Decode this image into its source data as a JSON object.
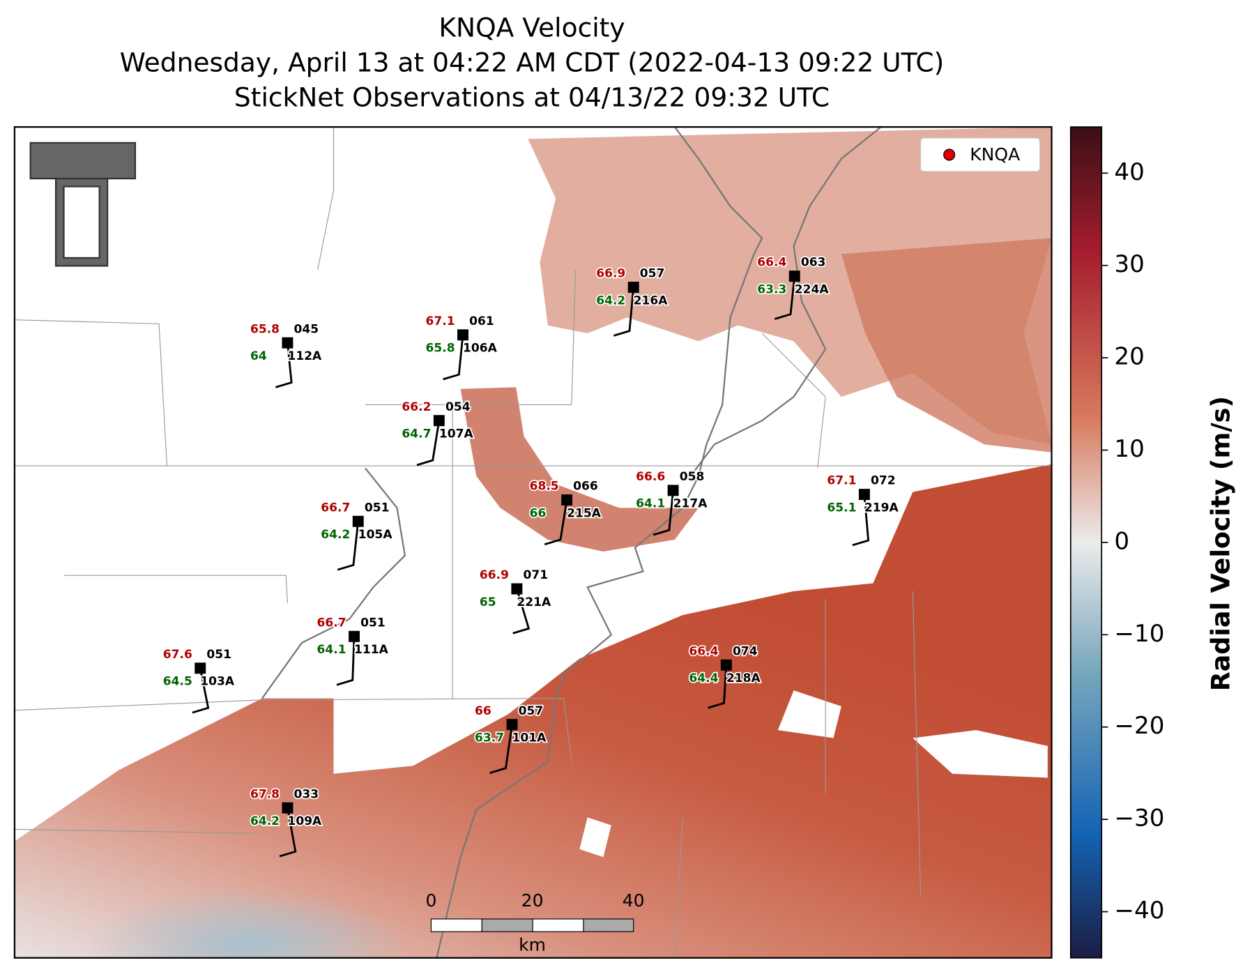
{
  "title": [
    "KNQA Velocity",
    "Wednesday, April 13 at 04:22 AM CDT (2022-04-13 09:22 UTC)",
    "StickNet Observations at 04/13/22 09:32 UTC"
  ],
  "legend": "KNQA",
  "stations": [
    {
      "id": "112A",
      "temperature": 65.8,
      "dewpoint": 64.0,
      "code": "045"
    },
    {
      "id": "106A",
      "temperature": 67.1,
      "dewpoint": 65.8,
      "code": "061"
    },
    {
      "id": "216A",
      "temperature": 66.9,
      "dewpoint": 64.2,
      "code": "057"
    },
    {
      "id": "224A",
      "temperature": 66.4,
      "dewpoint": 63.3,
      "code": "063"
    },
    {
      "id": "107A",
      "temperature": 66.2,
      "dewpoint": 64.7,
      "code": "054"
    },
    {
      "id": "215A",
      "temperature": 68.5,
      "dewpoint": 66.0,
      "code": "066"
    },
    {
      "id": "217A",
      "temperature": 66.6,
      "dewpoint": 64.1,
      "code": "058"
    },
    {
      "id": "219A",
      "temperature": 67.1,
      "dewpoint": 65.1,
      "code": "072"
    },
    {
      "id": "105A",
      "temperature": 66.7,
      "dewpoint": 64.2,
      "code": "051"
    },
    {
      "id": "221A",
      "temperature": 66.9,
      "dewpoint": 65.0,
      "code": "071"
    },
    {
      "id": "111A",
      "temperature": 66.7,
      "dewpoint": 64.1,
      "code": "051"
    },
    {
      "id": "103A",
      "temperature": 67.6,
      "dewpoint": 64.5,
      "code": "051"
    },
    {
      "id": "218A",
      "temperature": 66.4,
      "dewpoint": 64.4,
      "code": "074"
    },
    {
      "id": "101A",
      "temperature": 66.0,
      "dewpoint": 63.7,
      "code": "057"
    },
    {
      "id": "109A",
      "temperature": 67.8,
      "dewpoint": 64.2,
      "code": "033"
    }
  ],
  "scale_bar": {
    "ticks": [
      0,
      20,
      40
    ],
    "unit": "km"
  },
  "colorbar": {
    "label": "Radial Velocity (m/s)",
    "lim": [
      -45,
      45
    ],
    "ticks": [
      40,
      30,
      20,
      10,
      0,
      {
        "value": -10,
        "label": "−10"
      },
      {
        "value": -20,
        "label": "−20"
      },
      {
        "value": -30,
        "label": "−30"
      },
      {
        "value": -40,
        "label": "−40"
      }
    ]
  }
}
